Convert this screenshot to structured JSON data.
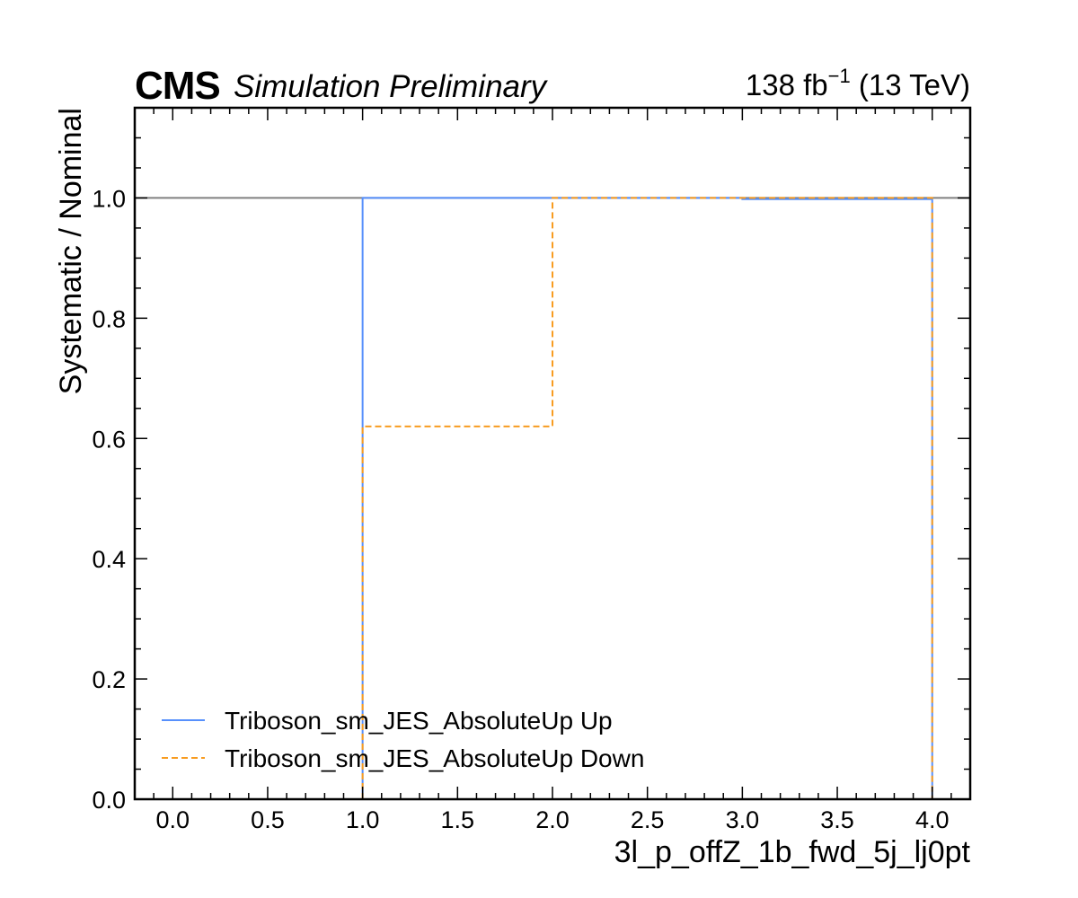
{
  "header": {
    "experiment": "CMS",
    "status": "Simulation Preliminary",
    "lumi_value": "138 fb",
    "lumi_exponent": "−1",
    "energy": " (13 TeV)"
  },
  "chart_data": {
    "type": "line",
    "xlabel": "3l_p_offZ_1b_fwd_5j_lj0pt",
    "ylabel": "Systematic / Nominal",
    "xlim": [
      -0.2,
      4.2
    ],
    "ylim": [
      0.0,
      1.15
    ],
    "xticks": [
      0.0,
      0.5,
      1.0,
      1.5,
      2.0,
      2.5,
      3.0,
      3.5,
      4.0
    ],
    "xtick_labels": [
      "0.0",
      "0.5",
      "1.0",
      "1.5",
      "2.0",
      "2.5",
      "3.0",
      "3.5",
      "4.0"
    ],
    "yticks": [
      0.0,
      0.2,
      0.4,
      0.6,
      0.8,
      1.0
    ],
    "ytick_labels": [
      "0.0",
      "0.2",
      "0.4",
      "0.6",
      "0.8",
      "1.0"
    ],
    "grid": false,
    "legend_position": "lower-left",
    "reference_line": {
      "y": 1.0,
      "color": "#808080"
    },
    "series": [
      {
        "name": "Triboson_sm_JES_AbsoluteUp Up",
        "style": "solid",
        "color": "#5790fc",
        "bin_edges": [
          1.0,
          2.0,
          3.0,
          4.0
        ],
        "values": [
          1.0,
          1.0,
          0.998
        ]
      },
      {
        "name": "Triboson_sm_JES_AbsoluteUp Down",
        "style": "dashed",
        "color": "#f89c20",
        "bin_edges": [
          1.0,
          2.0,
          3.0,
          4.0
        ],
        "values": [
          0.62,
          1.0,
          1.0
        ]
      }
    ]
  }
}
